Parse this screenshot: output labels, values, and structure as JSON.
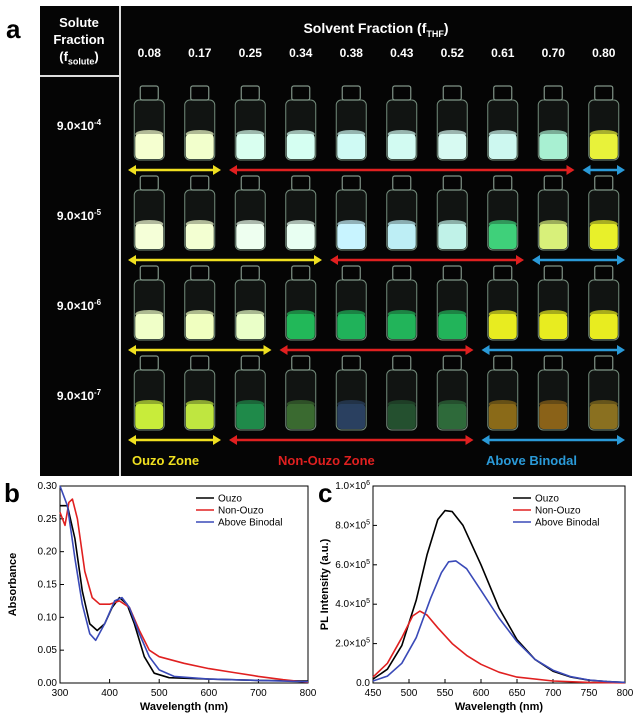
{
  "panel_a": {
    "label": "a",
    "solute_header_line1": "Solute",
    "solute_header_line2": "Fraction",
    "solute_header_sym": "(f",
    "solute_header_sub": "solute",
    "solute_header_close": ")",
    "solvent_header": "Solvent Fraction (f",
    "solvent_header_sub": "THF",
    "solvent_header_close": ")",
    "fractions": [
      "0.08",
      "0.17",
      "0.25",
      "0.34",
      "0.38",
      "0.43",
      "0.52",
      "0.61",
      "0.70",
      "0.80"
    ],
    "rows": [
      {
        "base": "9.0×10",
        "exp": "-4",
        "colors": [
          "#f5ffd0",
          "#f2ffcc",
          "#d9fff0",
          "#d5fff2",
          "#cffaf4",
          "#d2fbf2",
          "#d7faf2",
          "#cdf8f0",
          "#a8f0d2",
          "#e8f23a"
        ],
        "arrows": [
          {
            "c": "yellow",
            "from": 0,
            "to": 2
          },
          {
            "c": "red",
            "from": 2,
            "to": 9
          },
          {
            "c": "blue",
            "from": 9,
            "to": 10
          }
        ]
      },
      {
        "base": "9.0×10",
        "exp": "-5",
        "colors": [
          "#f5ffd8",
          "#f3ffd2",
          "#eefff0",
          "#e8fff2",
          "#c8f4ff",
          "#bdeef5",
          "#c0f2e8",
          "#3fd07a",
          "#d8f07a",
          "#e8f02a"
        ],
        "arrows": [
          {
            "c": "yellow",
            "from": 0,
            "to": 4
          },
          {
            "c": "red",
            "from": 4,
            "to": 8
          },
          {
            "c": "blue",
            "from": 8,
            "to": 10
          }
        ]
      },
      {
        "base": "9.0×10",
        "exp": "-6",
        "colors": [
          "#f0ffc8",
          "#f0ffc0",
          "#eaffc8",
          "#22b859",
          "#20b25a",
          "#22b45a",
          "#22b45a",
          "#e8ec20",
          "#e8ec20",
          "#e8ec20"
        ],
        "arrows": [
          {
            "c": "yellow",
            "from": 0,
            "to": 3
          },
          {
            "c": "red",
            "from": 3,
            "to": 7
          },
          {
            "c": "blue",
            "from": 7,
            "to": 10
          }
        ]
      },
      {
        "base": "9.0×10",
        "exp": "-7",
        "colors": [
          "#c8ec3a",
          "#bfe640",
          "#1f8a4a",
          "#3a6a30",
          "#2a4060",
          "#24502f",
          "#2e6a3a",
          "#8a6a18",
          "#8a6218",
          "#8a7020"
        ],
        "arrows": [
          {
            "c": "yellow",
            "from": 0,
            "to": 2
          },
          {
            "c": "red",
            "from": 2,
            "to": 7
          },
          {
            "c": "blue",
            "from": 7,
            "to": 10
          }
        ]
      }
    ],
    "zones": [
      {
        "label": "Ouzo Zone",
        "color": "#f0e020"
      },
      {
        "label": "Non-Ouzo Zone",
        "color": "#e02020"
      },
      {
        "label": "Above Binodal",
        "color": "#2a9ad8"
      }
    ],
    "arrow_colors": {
      "yellow": "#f0e020",
      "red": "#e02020",
      "blue": "#2a9ad8"
    }
  },
  "panel_b": {
    "label": "b"
  },
  "panel_c": {
    "label": "c"
  },
  "chart_data": [
    {
      "type": "line",
      "xlabel": "Wavelength (nm)",
      "ylabel": "Absorbance",
      "xlim": [
        300,
        800
      ],
      "ylim": [
        0,
        0.3
      ],
      "xticks": [
        300,
        400,
        500,
        600,
        700,
        800
      ],
      "yticks": [
        0.0,
        0.05,
        0.1,
        0.15,
        0.2,
        0.25,
        0.3
      ],
      "ytick_labels": [
        "0.00",
        "0.05",
        "0.10",
        "0.15",
        "0.20",
        "0.25",
        "0.30"
      ],
      "legend_position": "top-right",
      "series": [
        {
          "name": "Ouzo",
          "color": "#000000",
          "points": [
            [
              300,
              0.27
            ],
            [
              315,
              0.27
            ],
            [
              330,
              0.22
            ],
            [
              345,
              0.14
            ],
            [
              360,
              0.09
            ],
            [
              375,
              0.08
            ],
            [
              390,
              0.09
            ],
            [
              405,
              0.115
            ],
            [
              420,
              0.13
            ],
            [
              435,
              0.12
            ],
            [
              450,
              0.09
            ],
            [
              470,
              0.04
            ],
            [
              490,
              0.015
            ],
            [
              520,
              0.008
            ],
            [
              600,
              0.006
            ],
            [
              700,
              0.004
            ],
            [
              800,
              0.003
            ]
          ]
        },
        {
          "name": "Non-Ouzo",
          "color": "#e02020",
          "points": [
            [
              300,
              0.26
            ],
            [
              310,
              0.24
            ],
            [
              318,
              0.275
            ],
            [
              325,
              0.28
            ],
            [
              335,
              0.25
            ],
            [
              350,
              0.17
            ],
            [
              365,
              0.13
            ],
            [
              380,
              0.12
            ],
            [
              400,
              0.12
            ],
            [
              420,
              0.125
            ],
            [
              440,
              0.115
            ],
            [
              460,
              0.08
            ],
            [
              480,
              0.05
            ],
            [
              500,
              0.04
            ],
            [
              550,
              0.03
            ],
            [
              600,
              0.022
            ],
            [
              650,
              0.016
            ],
            [
              700,
              0.01
            ],
            [
              750,
              0.005
            ],
            [
              800,
              0.001
            ]
          ]
        },
        {
          "name": "Above Binodal",
          "color": "#3a4ab8",
          "points": [
            [
              300,
              0.3
            ],
            [
              315,
              0.27
            ],
            [
              330,
              0.19
            ],
            [
              345,
              0.12
            ],
            [
              360,
              0.075
            ],
            [
              372,
              0.065
            ],
            [
              390,
              0.09
            ],
            [
              410,
              0.125
            ],
            [
              425,
              0.13
            ],
            [
              440,
              0.115
            ],
            [
              460,
              0.075
            ],
            [
              480,
              0.04
            ],
            [
              500,
              0.02
            ],
            [
              530,
              0.01
            ],
            [
              600,
              0.006
            ],
            [
              700,
              0.004
            ],
            [
              800,
              0.002
            ]
          ]
        }
      ]
    },
    {
      "type": "line",
      "xlabel": "Wavelength (nm)",
      "ylabel": "PL Intensity (a.u.)",
      "xlim": [
        450,
        800
      ],
      "ylim": [
        0,
        1000000
      ],
      "xticks": [
        450,
        500,
        550,
        600,
        650,
        700,
        750,
        800
      ],
      "yticks": [
        0,
        200000,
        400000,
        600000,
        800000,
        1000000
      ],
      "ytick_labels": [
        {
          "m": "0.0",
          "e": ""
        },
        {
          "m": "2.0×10",
          "e": "5"
        },
        {
          "m": "4.0×10",
          "e": "5"
        },
        {
          "m": "6.0×10",
          "e": "5"
        },
        {
          "m": "8.0×10",
          "e": "5"
        },
        {
          "m": "1.0×10",
          "e": "6"
        }
      ],
      "legend_position": "top-right",
      "series": [
        {
          "name": "Ouzo",
          "color": "#000000",
          "points": [
            [
              450,
              20000
            ],
            [
              470,
              70000
            ],
            [
              490,
              190000
            ],
            [
              510,
              420000
            ],
            [
              525,
              650000
            ],
            [
              540,
              830000
            ],
            [
              550,
              875000
            ],
            [
              560,
              870000
            ],
            [
              575,
              800000
            ],
            [
              600,
              600000
            ],
            [
              625,
              380000
            ],
            [
              650,
              220000
            ],
            [
              675,
              120000
            ],
            [
              700,
              60000
            ],
            [
              725,
              30000
            ],
            [
              750,
              14000
            ],
            [
              775,
              7000
            ],
            [
              800,
              3000
            ]
          ]
        },
        {
          "name": "Non-Ouzo",
          "color": "#e02020",
          "points": [
            [
              450,
              30000
            ],
            [
              470,
              100000
            ],
            [
              490,
              230000
            ],
            [
              505,
              340000
            ],
            [
              515,
              365000
            ],
            [
              525,
              345000
            ],
            [
              540,
              280000
            ],
            [
              560,
              200000
            ],
            [
              580,
              140000
            ],
            [
              600,
              95000
            ],
            [
              625,
              55000
            ],
            [
              650,
              30000
            ],
            [
              700,
              10000
            ],
            [
              750,
              3000
            ],
            [
              800,
              1000
            ]
          ]
        },
        {
          "name": "Above Binodal",
          "color": "#3a4ab8",
          "points": [
            [
              450,
              10000
            ],
            [
              470,
              35000
            ],
            [
              490,
              100000
            ],
            [
              510,
              230000
            ],
            [
              530,
              430000
            ],
            [
              545,
              560000
            ],
            [
              555,
              615000
            ],
            [
              565,
              620000
            ],
            [
              580,
              580000
            ],
            [
              600,
              470000
            ],
            [
              625,
              330000
            ],
            [
              650,
              210000
            ],
            [
              675,
              120000
            ],
            [
              700,
              65000
            ],
            [
              725,
              32000
            ],
            [
              750,
              15000
            ],
            [
              775,
              7000
            ],
            [
              800,
              3000
            ]
          ]
        }
      ]
    }
  ]
}
